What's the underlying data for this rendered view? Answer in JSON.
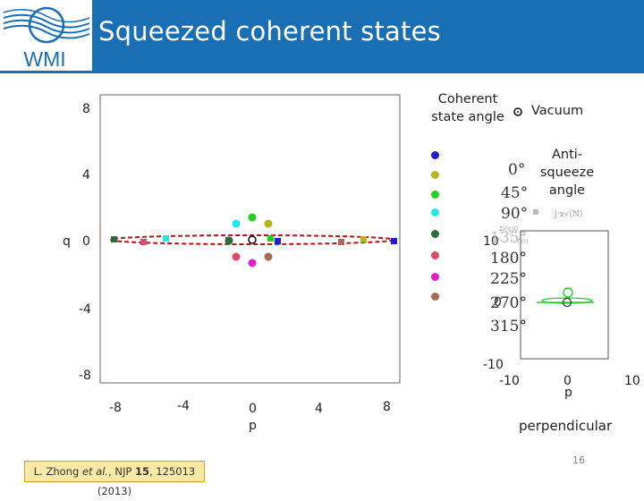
{
  "header": {
    "title": "Squeezed coherent states",
    "logo_text": "WMI"
  },
  "main_plot": {
    "y_ticks": [
      "8",
      "4",
      "0",
      "-4",
      "-8"
    ],
    "x_ticks": [
      "-8",
      "-4",
      "0",
      "4",
      "8"
    ],
    "y_label": "q",
    "x_label": "p"
  },
  "legend": {
    "title_line1": "Coherent",
    "title_line2": "state angle",
    "vacuum_label": "Vacuum",
    "anti_line1": "Anti-",
    "anti_line2": "squeeze",
    "anti_line3": "angle",
    "angles": [
      "0°",
      "45°",
      "90°",
      "135°",
      "180°",
      "225°",
      "270°",
      "315°"
    ],
    "colors": [
      "#1f1fc8",
      "#b5b51f",
      "#23d123",
      "#1fe8e8",
      "#2f6b3a",
      "#e04a6a",
      "#e41fc8",
      "#a86a55"
    ]
  },
  "inset_plot": {
    "y_ticks": [
      "10",
      "0",
      "-10"
    ],
    "x_ticks": [
      "-10",
      "0",
      "10"
    ],
    "x_label": "p",
    "caption": "perpendicular",
    "faint_labels": [
      "j·x√(N)",
      "Σ/(g)0",
      "0(t)"
    ]
  },
  "citation": {
    "text_pre": "L. Zhong ",
    "text_em": "et al.",
    "text_mid": ", NJP ",
    "text_bold": "15",
    "text_post": ", 125013 (2013)"
  },
  "page_number": "16"
}
